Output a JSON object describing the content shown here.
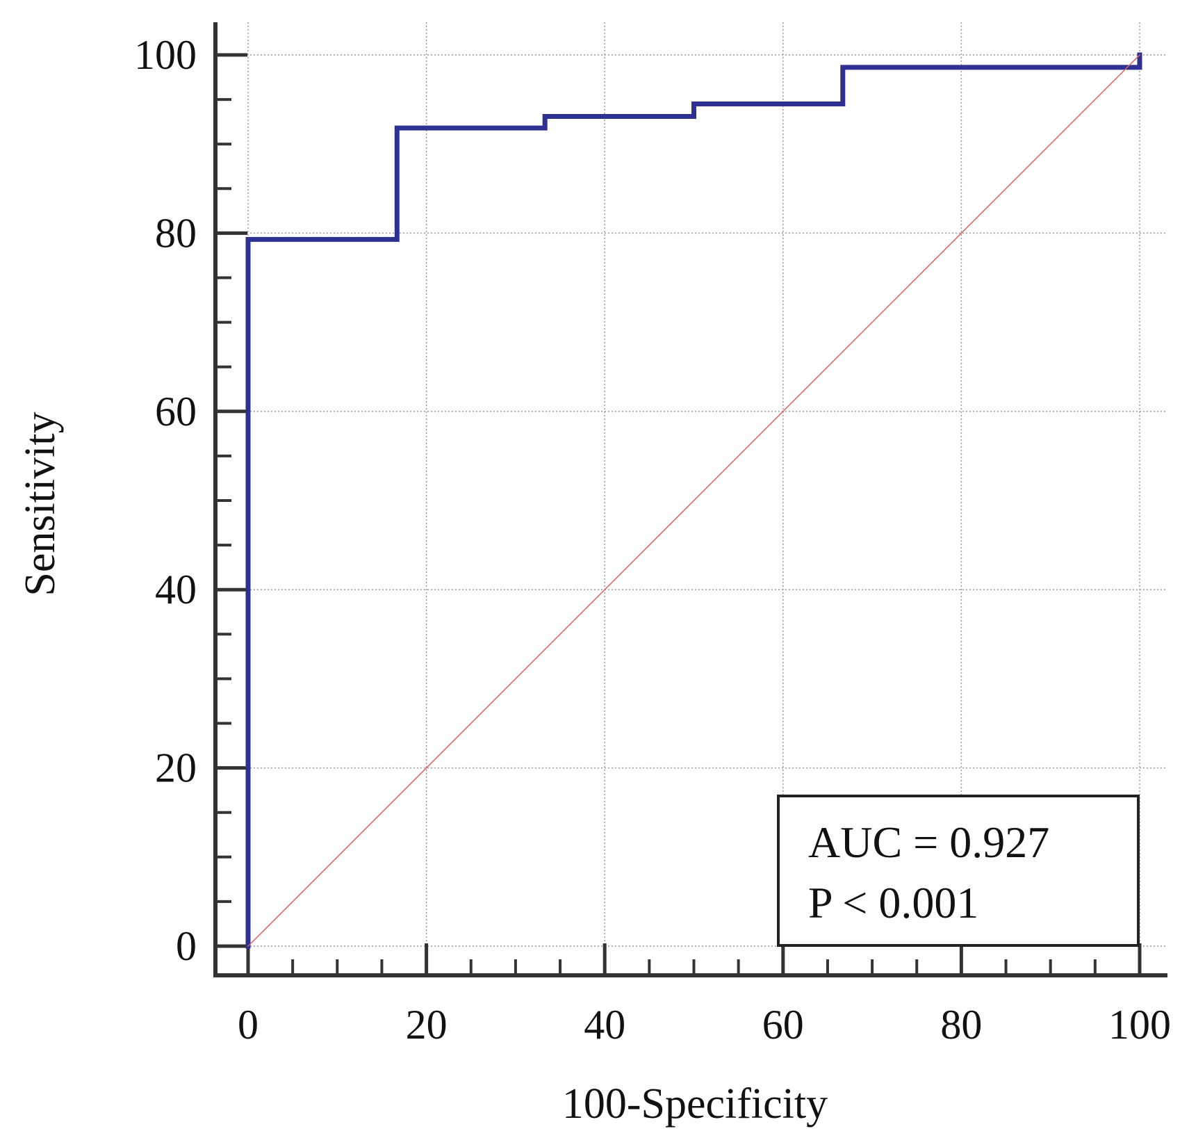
{
  "chart_data": {
    "type": "line",
    "title": "",
    "xlabel": "100-Specificity",
    "ylabel": "Sensitivity",
    "xlim": [
      0,
      100
    ],
    "ylim": [
      0,
      100
    ],
    "xticks": [
      "0",
      "20",
      "40",
      "60",
      "80",
      "100"
    ],
    "yticks": [
      "0",
      "20",
      "40",
      "60",
      "80",
      "100"
    ],
    "grid": true,
    "series": [
      {
        "name": "ROC curve",
        "color": "#2e3192",
        "style": "step",
        "points": [
          [
            0,
            0
          ],
          [
            0,
            79.3
          ],
          [
            16.7,
            79.3
          ],
          [
            16.7,
            91.8
          ],
          [
            33.3,
            91.8
          ],
          [
            33.3,
            93.1
          ],
          [
            50,
            93.1
          ],
          [
            50,
            94.5
          ],
          [
            66.7,
            94.5
          ],
          [
            66.7,
            98.6
          ],
          [
            100,
            98.6
          ],
          [
            100,
            100
          ]
        ]
      },
      {
        "name": "Reference line",
        "color": "#e06060",
        "style": "diagonal",
        "points": [
          [
            0,
            0
          ],
          [
            100,
            100
          ]
        ]
      }
    ],
    "annotation": {
      "auc": "AUC = 0.927",
      "p": "P < 0.001",
      "placement": "bottom-right"
    }
  }
}
